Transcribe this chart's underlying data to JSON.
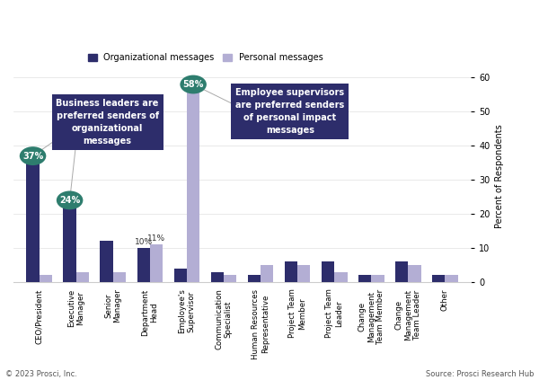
{
  "categories": [
    "CEO/President",
    "Executive\nManager",
    "Senior\nManager",
    "Department\nHead",
    "Employee's\nSupervisor",
    "Communication\nSpecialist",
    "Human Resources\nRepresentative",
    "Project Team\nMember",
    "Project Team\nLeader",
    "Change\nManagement\nTeam Member",
    "Change\nManagement\nTeam Leader",
    "Other"
  ],
  "org_values": [
    37,
    24,
    12,
    10,
    4,
    3,
    2,
    6,
    6,
    2,
    6,
    2
  ],
  "personal_values": [
    2,
    3,
    3,
    11,
    58,
    2,
    5,
    5,
    3,
    2,
    5,
    2
  ],
  "org_color": "#2d2d6b",
  "personal_color": "#b3aed4",
  "bubble_color": "#2e7d6e",
  "box_color": "#2d2d6b",
  "text_color": "#ffffff",
  "line_color": "#aaaaaa",
  "ylim": [
    0,
    62
  ],
  "yticks": [
    0,
    10,
    20,
    30,
    40,
    50,
    60
  ],
  "ylabel": "Percent of Respondents",
  "legend_labels": [
    "Organizational messages",
    "Personal messages"
  ],
  "label_37": "37%",
  "label_24": "24%",
  "label_10": "10%",
  "label_11": "11%",
  "label_58": "58%",
  "box1_text": "Business leaders are\npreferred senders of\norganizational\nmessages",
  "box2_text": "Employee supervisors\nare preferred senders\nof personal impact\nmessages",
  "footer_left": "© 2023 Prosci, Inc.",
  "footer_right": "Source: Prosci Research Hub",
  "background_color": "#ffffff",
  "bar_width": 0.35
}
